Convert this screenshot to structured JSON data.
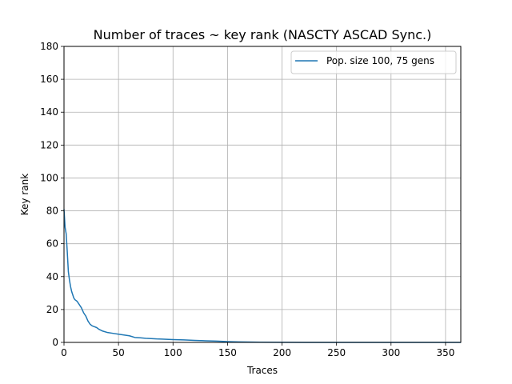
{
  "chart_data": {
    "type": "line",
    "title": "Number of traces ~ key rank (NASCTY ASCAD Sync.)",
    "xlabel": "Traces",
    "ylabel": "Key rank",
    "xlim": [
      0,
      364
    ],
    "ylim": [
      0,
      180
    ],
    "xticks": [
      0,
      50,
      100,
      150,
      200,
      250,
      300,
      350
    ],
    "yticks": [
      0,
      20,
      40,
      60,
      80,
      100,
      120,
      140,
      160,
      180
    ],
    "grid": true,
    "legend_position": "top-right",
    "series": [
      {
        "name": "Pop. size 100, 75 gens",
        "color": "#1f77b4",
        "x": [
          0,
          1,
          2,
          3,
          4,
          5,
          6,
          7,
          8,
          9,
          10,
          12,
          14,
          16,
          18,
          20,
          22,
          24,
          26,
          28,
          30,
          32,
          35,
          40,
          45,
          50,
          55,
          60,
          65,
          70,
          75,
          80,
          85,
          90,
          100,
          110,
          120,
          130,
          140,
          150,
          160,
          180,
          200,
          250,
          300,
          364
        ],
        "y": [
          81,
          70,
          66,
          55,
          43,
          38,
          34,
          31,
          29,
          27,
          26,
          25,
          23,
          21,
          18,
          16,
          13,
          11,
          10,
          9.5,
          9,
          8,
          7,
          6,
          5.5,
          5,
          4.5,
          4,
          3,
          2.8,
          2.5,
          2.3,
          2.1,
          2,
          1.7,
          1.5,
          1.2,
          1,
          0.8,
          0.5,
          0.3,
          0.1,
          0.05,
          0,
          0,
          0
        ]
      }
    ]
  }
}
